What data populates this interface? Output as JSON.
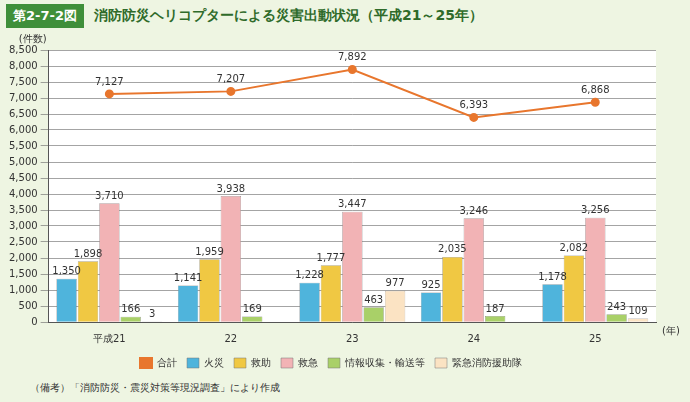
{
  "header": "第2-7-2図",
  "chart_data": {
    "type": "bar",
    "title": "消防防災ヘリコプターによる災害出動状況（平成21～25年）",
    "y_label": "(件数)",
    "x_label": "(年)",
    "categories": [
      "平成21",
      "22",
      "23",
      "24",
      "25"
    ],
    "series": [
      {
        "name": "火災",
        "color": "#4fb4dc",
        "values": [
          1350,
          1141,
          1228,
          925,
          1178
        ],
        "value_labels": [
          "1,350",
          "1,141",
          "1,228",
          "925",
          "1,178"
        ]
      },
      {
        "name": "救助",
        "color": "#f0c843",
        "values": [
          1898,
          1959,
          1777,
          2035,
          2082
        ],
        "value_labels": [
          "1,898",
          "1,959",
          "1,777",
          "2,035",
          "2,082"
        ]
      },
      {
        "name": "救急",
        "color": "#f2b3b5",
        "values": [
          3710,
          3938,
          3447,
          3246,
          3256
        ],
        "value_labels": [
          "3,710",
          "3,938",
          "3,447",
          "3,246",
          "3,256"
        ]
      },
      {
        "name": "情報収集・輸送等",
        "color": "#a9d068",
        "values": [
          166,
          169,
          463,
          187,
          243
        ],
        "value_labels": [
          "166",
          "169",
          "463",
          "187",
          "243"
        ]
      },
      {
        "name": "緊急消防援助隊",
        "color": "#fbe3c3",
        "values": [
          3,
          null,
          977,
          null,
          109
        ],
        "value_labels": [
          "3",
          null,
          "977",
          null,
          "109"
        ]
      },
      {
        "name": "合計",
        "type": "line",
        "marker": "circle",
        "color": "#e8762d",
        "values": [
          7127,
          7207,
          7892,
          6393,
          6868
        ],
        "value_labels": [
          "7,127",
          "7,207",
          "7,892",
          "6,393",
          "6,868"
        ]
      }
    ],
    "ylim": [
      0,
      8500
    ],
    "yticks": [
      0,
      500,
      {
        "value": 1000,
        "label": "1,000"
      },
      {
        "value": 1500,
        "label": "1,500"
      },
      {
        "value": 2000,
        "label": "2,000"
      },
      {
        "value": 2500,
        "label": "2,500"
      },
      {
        "value": 3000,
        "label": "3,000"
      },
      {
        "value": 3500,
        "label": "3,500"
      },
      {
        "value": 4000,
        "label": "4,000"
      },
      {
        "value": 4500,
        "label": "4,500"
      },
      {
        "value": 5000,
        "label": "5,000"
      },
      {
        "value": 5500,
        "label": "5,500"
      },
      {
        "value": 6000,
        "label": "6,000"
      },
      {
        "value": 6500,
        "label": "6,500"
      },
      {
        "value": 7000,
        "label": "7,000"
      },
      {
        "value": 7500,
        "label": "7,500"
      },
      {
        "value": 8000,
        "label": "8,000"
      },
      {
        "value": 8500,
        "label": "8,500"
      }
    ],
    "grid": true,
    "legend": "bottom",
    "data_labels": true
  },
  "note": "（備考）「消防防災・震災対策等現況調査」により作成"
}
